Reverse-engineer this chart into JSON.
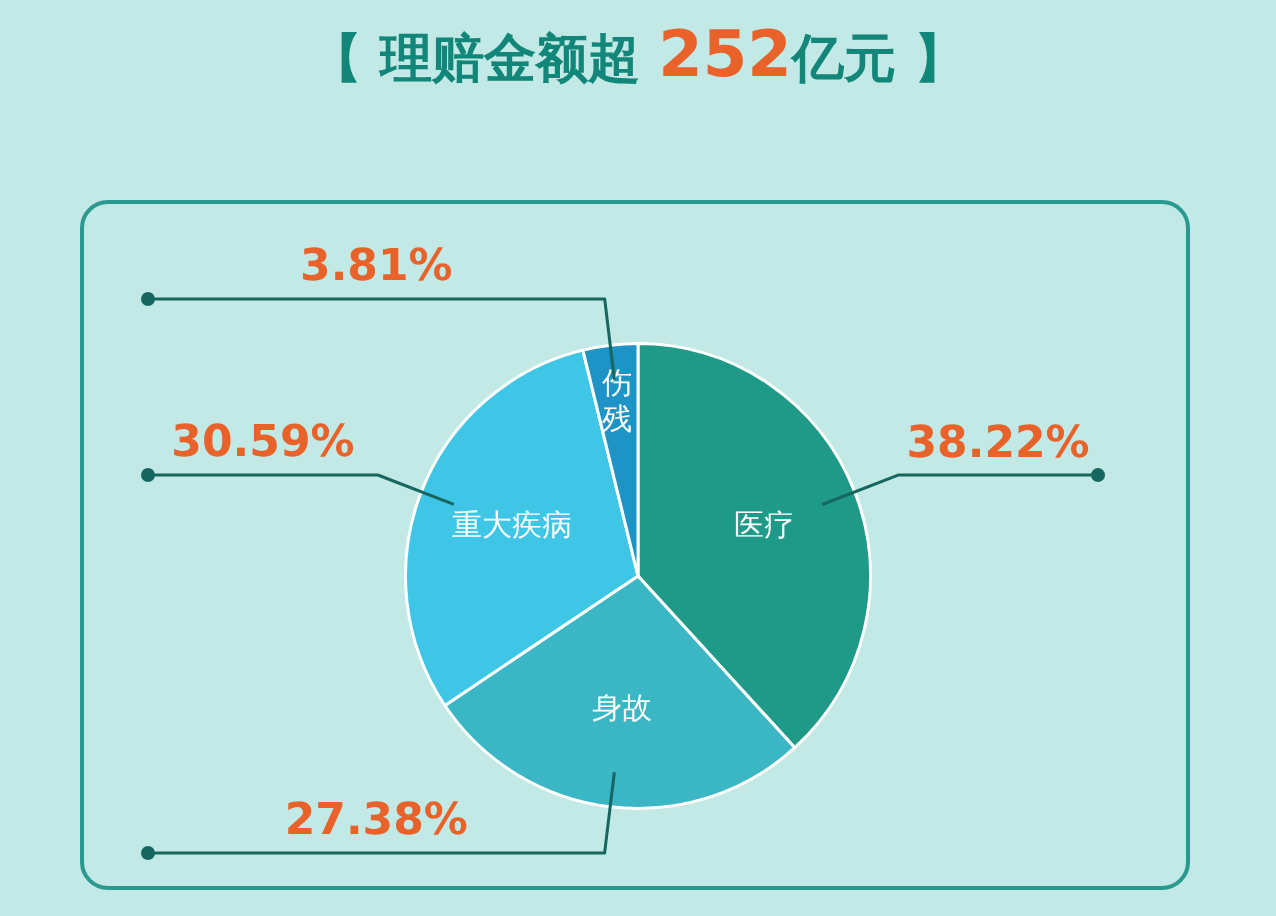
{
  "chart_data": {
    "type": "pie",
    "title": "【 理赔金额超 252亿元 】",
    "categories": [
      "医疗",
      "身故",
      "重大疾病",
      "伤残"
    ],
    "values": [
      38.22,
      27.38,
      30.59,
      3.81
    ],
    "colors": [
      "#1f9a89",
      "#3bb6c4",
      "#3fc6e6",
      "#1d93c6"
    ],
    "value_labels": [
      "38.22%",
      "27.38%",
      "30.59%",
      "3.81%"
    ],
    "legend": false
  }
}
